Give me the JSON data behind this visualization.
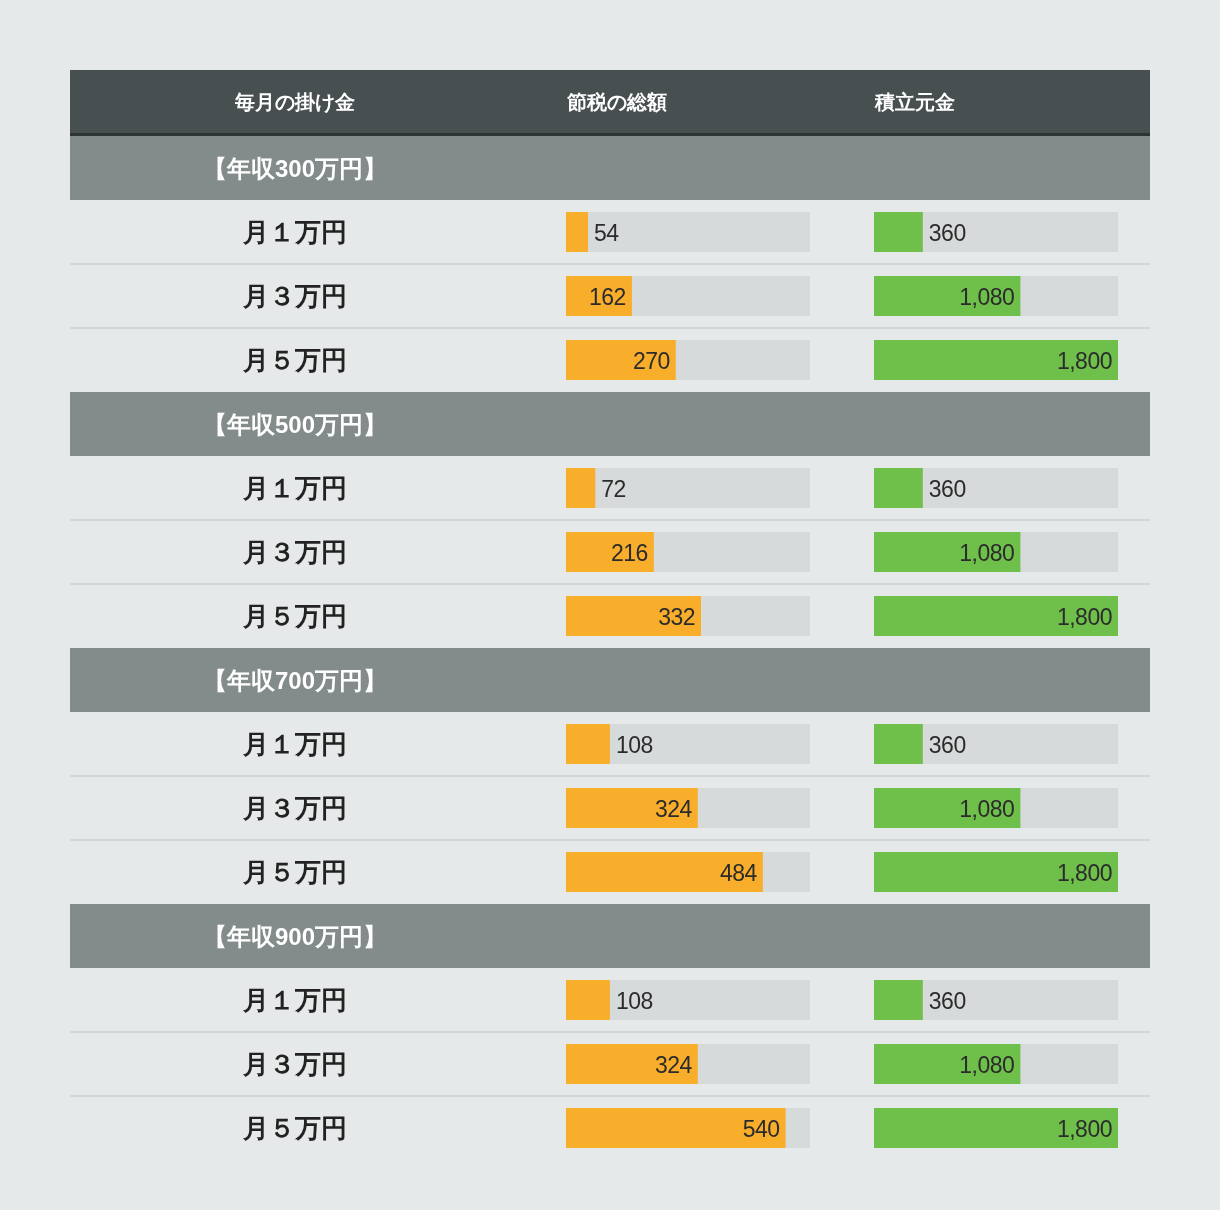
{
  "chart_data": [
    {
      "type": "bar",
      "orientation": "horizontal",
      "title": "【年収300万円】",
      "ylabel": "毎月の掛け金",
      "categories": [
        "月１万円",
        "月３万円",
        "月５万円"
      ],
      "series": [
        {
          "name": "節税の総額",
          "color": "#f8ad2b",
          "values": [
            54,
            162,
            270
          ]
        }
      ],
      "xlim": [
        0,
        600
      ],
      "data_labels": true
    },
    {
      "type": "bar",
      "orientation": "horizontal",
      "categories": [
        null,
        null,
        null
      ],
      "series": [
        {
          "name": "積立元金",
          "color": "#6fc04b",
          "values": [
            360,
            1080,
            1800
          ],
          "value_labels": [
            "360",
            "1,080",
            "1,800"
          ]
        }
      ],
      "xlim": [
        0,
        1800
      ]
    },
    {
      "type": "bar",
      "orientation": "horizontal",
      "title": "【年収500万円】",
      "categories": [
        "月１万円",
        "月３万円",
        "月５万円"
      ],
      "series": [
        {
          "color": "#f8ad2b",
          "values": [
            72,
            216,
            332
          ]
        }
      ],
      "xlim": [
        0,
        600
      ],
      "data_labels": true
    },
    {
      "type": "bar",
      "orientation": "horizontal",
      "categories": [
        null,
        null,
        null
      ],
      "series": [
        {
          "color": "#6fc04b",
          "values": [
            360,
            1080,
            1800
          ],
          "value_labels": [
            "360",
            "1,080",
            "1,800"
          ]
        }
      ],
      "xlim": [
        0,
        1800
      ]
    },
    {
      "type": "bar",
      "orientation": "horizontal",
      "title": "【年収700万円】",
      "categories": [
        "月１万円",
        "月３万円",
        "月５万円"
      ],
      "series": [
        {
          "color": "#f8ad2b",
          "values": [
            108,
            324,
            484
          ]
        }
      ],
      "xlim": [
        0,
        600
      ],
      "data_labels": true
    },
    {
      "type": "bar",
      "orientation": "horizontal",
      "categories": [
        null,
        null,
        null
      ],
      "series": [
        {
          "color": "#6fc04b",
          "values": [
            360,
            1080,
            1800
          ],
          "value_labels": [
            "360",
            "1,080",
            "1,800"
          ]
        }
      ],
      "xlim": [
        0,
        1800
      ]
    },
    {
      "type": "bar",
      "orientation": "horizontal",
      "title": "【年収900万円】",
      "categories": [
        "月１万円",
        "月３万円",
        "月５万円"
      ],
      "series": [
        {
          "color": "#f8ad2b",
          "values": [
            108,
            324,
            540
          ]
        }
      ],
      "xlim": [
        0,
        600
      ],
      "data_labels": true
    },
    {
      "type": "bar",
      "orientation": "horizontal",
      "categories": [
        null,
        null,
        null
      ],
      "series": [
        {
          "color": "#6fc04b",
          "values": [
            360,
            1080,
            1800
          ],
          "value_labels": [
            "360",
            "1,080",
            "1,800"
          ]
        }
      ],
      "xlim": [
        0,
        1800
      ]
    }
  ]
}
